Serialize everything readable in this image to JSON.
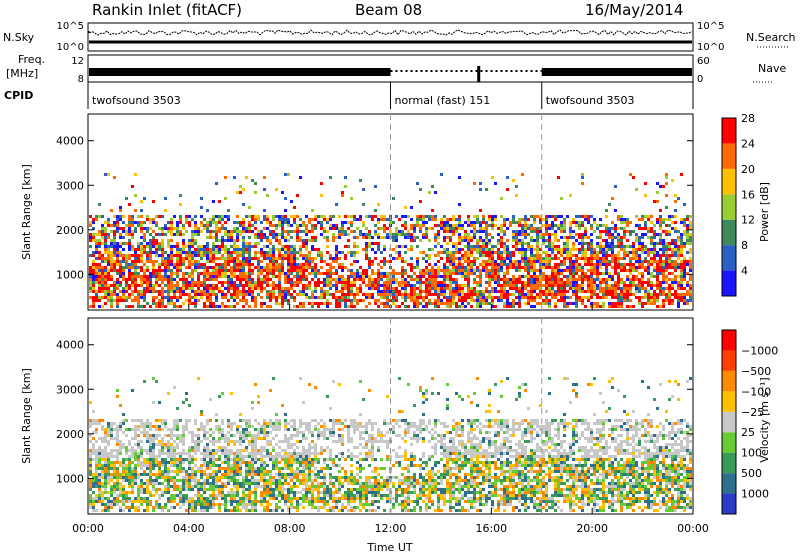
{
  "header": {
    "station": "Rankin Inlet (fitACF)",
    "beam": "Beam 08",
    "date": "16/May/2014"
  },
  "aux": {
    "nsky_label": "N.Sky",
    "nsky_ticks": [
      "10^5",
      "10^0"
    ],
    "nsearch_label": "N.Search",
    "nsearch_ticks": [
      "10^5",
      "10^0"
    ],
    "freq_label_1": "Freq.",
    "freq_label_2": "[MHz]",
    "freq_ticks": [
      "12",
      "8"
    ],
    "nave_label": "Nave",
    "nave_ticks": [
      "60",
      "0"
    ],
    "cpid_label": "CPID",
    "cpid_segments": [
      {
        "label": "twofsound 3503",
        "start": 0,
        "end": 12
      },
      {
        "label": "normal (fast) 151",
        "start": 12,
        "end": 18
      },
      {
        "label": "twofsound 3503",
        "start": 18,
        "end": 24
      }
    ]
  },
  "chart_data": [
    {
      "type": "heatmap",
      "quantity": "Power",
      "xlabel": "",
      "ylabel": "Slant Range [km]",
      "xlim": [
        0,
        24
      ],
      "ylim": [
        200,
        4600
      ],
      "yticks": [
        1000,
        2000,
        3000,
        4000
      ],
      "colorbar": {
        "label": "Power [dB]",
        "ticks": [
          "4",
          "8",
          "12",
          "16",
          "20",
          "24",
          "28"
        ],
        "colors": [
          "#1a14ff",
          "#2a5fc4",
          "#3f8a5c",
          "#9acd32",
          "#ffc000",
          "#ff6a00",
          "#ff0000"
        ]
      }
    },
    {
      "type": "heatmap",
      "quantity": "Velocity",
      "xlabel": "Time UT",
      "ylabel": "Slant Range [km]",
      "xlim": [
        0,
        24
      ],
      "ylim": [
        200,
        4600
      ],
      "yticks": [
        1000,
        2000,
        3000,
        4000
      ],
      "xticks": [
        "00:00",
        "04:00",
        "08:00",
        "12:00",
        "16:00",
        "20:00",
        "00:00"
      ],
      "colorbar": {
        "label": "Velocity [m s⁻¹]",
        "ticks": [
          "1000",
          "500",
          "100",
          "25",
          "−25",
          "−100",
          "−500",
          "−1000"
        ],
        "colors": [
          "#2a3cc8",
          "#2d6f8c",
          "#3a9a5a",
          "#66cc33",
          "#c8c8c8",
          "#ffc000",
          "#ff8a00",
          "#ff4000",
          "#ff0000"
        ]
      }
    }
  ]
}
